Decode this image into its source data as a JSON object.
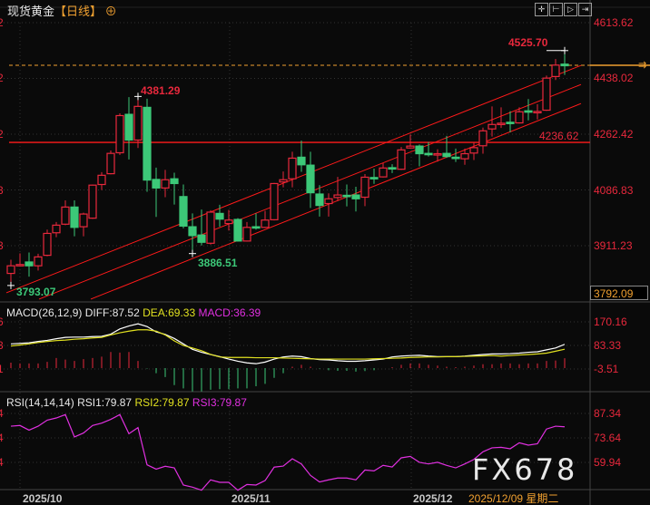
{
  "title": {
    "instrument": "现货黄金",
    "period": "【日线】",
    "icon": "plus-circle-icon"
  },
  "toolbar": [
    {
      "icon": "crosshair-icon"
    },
    {
      "icon": "zoom-range-icon"
    },
    {
      "icon": "play-forward-icon"
    },
    {
      "icon": "move-right-icon"
    }
  ],
  "colors": {
    "up": "#e8283c",
    "down": "#3cc878",
    "diff": "#ffffff",
    "dea": "#e0e020",
    "rsi": "#e030e0",
    "last_price": "#f0a030",
    "support": "#ff1a1a"
  },
  "price_axis": {
    "labels": [
      "4613.62",
      "4438.02",
      "4262.42",
      "4086.83",
      "3911.23"
    ],
    "values": [
      4613.62,
      4438.02,
      4262.42,
      4086.83,
      3911.23
    ],
    "bottom_box": "3792.09"
  },
  "left_axis_fragments": {
    "price": [
      "2",
      "2",
      "2",
      "3",
      "3"
    ],
    "macd": [
      "6",
      "3",
      "1"
    ],
    "rsi": [
      "4",
      "4",
      "4"
    ]
  },
  "annotations": {
    "high_label": "4525.70",
    "peak_label": "4381.29",
    "low_label": "3886.51",
    "start_low_label": "3793.07",
    "support_label": "4236.62"
  },
  "support_level": 4236.62,
  "last_price": 4479.4,
  "macd": {
    "label": "MACD(26,12,9)",
    "diff_label": "DIFF:87.52",
    "dea_label": "DEA:69.33",
    "macd_label": "MACD:36.39",
    "axis_labels": [
      "170.16",
      "83.33",
      "-3.51"
    ],
    "axis_values": [
      170.16,
      83.33,
      -3.51
    ]
  },
  "rsi": {
    "label": "RSI(14,14,14)",
    "rsi1_label": "RSI1:79.87",
    "rsi2_label": "RSI2:79.87",
    "rsi3_label": "RSI3:79.87",
    "axis_labels": [
      "87.34",
      "73.64",
      "59.94"
    ],
    "axis_values": [
      87.34,
      73.64,
      59.94
    ]
  },
  "x_axis": {
    "labels": [
      "2025/10",
      "2025/11",
      "2025/12"
    ],
    "cursor_date": "2025/12/09 星期二"
  },
  "watermark": "FX678",
  "chart_data": {
    "type": "candlestick",
    "ohlc": [
      [
        3824,
        3867,
        3786,
        3848
      ],
      [
        3850,
        3887,
        3846,
        3852
      ],
      [
        3860,
        3890,
        3814,
        3848
      ],
      [
        3848,
        3886,
        3833,
        3876
      ],
      [
        3881,
        3962,
        3878,
        3950
      ],
      [
        3952,
        3986,
        3938,
        3976
      ],
      [
        3979,
        4054,
        3976,
        4033
      ],
      [
        4033,
        4054,
        3941,
        3969
      ],
      [
        3971,
        4015,
        3941,
        4011
      ],
      [
        3998,
        4104,
        3996,
        4102
      ],
      [
        4104,
        4143,
        4087,
        4133
      ],
      [
        4138,
        4211,
        4136,
        4202
      ],
      [
        4204,
        4328,
        4197,
        4321
      ],
      [
        4325,
        4379,
        4183,
        4244
      ],
      [
        4244,
        4381.29,
        4219,
        4350
      ],
      [
        4347,
        4374,
        4081,
        4118
      ],
      [
        4120,
        4157,
        4002,
        4093
      ],
      [
        4093,
        4150,
        4064,
        4119
      ],
      [
        4122,
        4141,
        4041,
        4107
      ],
      [
        4066,
        4104,
        3966,
        3973
      ],
      [
        3971,
        4013,
        3886.51,
        3943
      ],
      [
        3945,
        4025,
        3912,
        3922
      ],
      [
        3919,
        4023,
        3915,
        4017
      ],
      [
        4013,
        4040,
        3971,
        3995
      ],
      [
        3981,
        4024,
        3959,
        3992
      ],
      [
        3994,
        3998,
        3924,
        3926
      ],
      [
        3926,
        3986,
        3924,
        3969
      ],
      [
        3971,
        4013,
        3962,
        3970
      ],
      [
        3969,
        4021,
        3967,
        3992
      ],
      [
        3993,
        4109,
        3991,
        4107
      ],
      [
        4112,
        4145,
        4095,
        4119
      ],
      [
        4122,
        4207,
        4095,
        4187
      ],
      [
        4190,
        4242,
        4144,
        4166
      ],
      [
        4165,
        4207,
        4030,
        4078
      ],
      [
        4074,
        4102,
        4003,
        4038
      ],
      [
        4044,
        4076,
        4003,
        4059
      ],
      [
        4063,
        4128,
        4052,
        4071
      ],
      [
        4070,
        4104,
        4035,
        4068
      ],
      [
        4071,
        4097,
        4019,
        4059
      ],
      [
        4064,
        4137,
        4036,
        4127
      ],
      [
        4126,
        4154,
        4106,
        4124
      ],
      [
        4128,
        4171,
        4126,
        4156
      ],
      [
        4157,
        4168,
        4140,
        4155
      ],
      [
        4152,
        4222,
        4150,
        4213
      ],
      [
        4219,
        4261,
        4217,
        4225
      ],
      [
        4225,
        4230,
        4161,
        4201
      ],
      [
        4202,
        4238,
        4192,
        4200
      ],
      [
        4200,
        4215,
        4176,
        4201
      ],
      [
        4202,
        4257,
        4188,
        4192
      ],
      [
        4190,
        4217,
        4175,
        4188
      ],
      [
        4185,
        4217,
        4166,
        4201
      ],
      [
        4203,
        4236,
        4181,
        4220
      ],
      [
        4226,
        4283,
        4201,
        4273
      ],
      [
        4279,
        4350,
        4255,
        4293
      ],
      [
        4296,
        4347,
        4282,
        4297
      ],
      [
        4300,
        4335,
        4268,
        4298
      ],
      [
        4298,
        4347,
        4296,
        4333
      ],
      [
        4336,
        4373,
        4306,
        4334
      ],
      [
        4333,
        4357,
        4309,
        4334
      ],
      [
        4338,
        4447,
        4336,
        4439
      ],
      [
        4444,
        4499,
        4433,
        4480
      ],
      [
        4483,
        4525.7,
        4449,
        4478
      ]
    ],
    "channel": {
      "upper": [
        [
          -0.5,
          3763
        ],
        [
          62.8,
          4479
        ]
      ],
      "middle": [
        [
          3.1,
          3743
        ],
        [
          62.8,
          4419
        ]
      ],
      "lower": [
        [
          8.8,
          3743
        ],
        [
          62.8,
          4359
        ]
      ]
    },
    "macd_hist": [
      20,
      17,
      17,
      17,
      23,
      37,
      31,
      26,
      33,
      37,
      42,
      59,
      57,
      59,
      26,
      -2,
      -19,
      -33,
      -63,
      -75,
      -86,
      -86,
      -80,
      -78,
      -78,
      -75,
      -75,
      -67,
      -58,
      -36,
      -19,
      5,
      12,
      5,
      -2,
      -8,
      -10,
      -10,
      -13,
      -11,
      -8,
      0,
      3,
      12,
      17,
      17,
      12,
      9,
      5,
      3,
      5,
      9,
      14,
      14,
      17,
      17,
      14,
      17,
      17,
      26,
      28,
      36
    ],
    "diff": [
      89,
      91,
      93,
      98,
      102,
      108,
      113,
      114,
      114,
      116,
      117,
      125,
      144,
      155,
      163,
      153,
      133,
      124,
      109,
      89,
      69,
      58,
      50,
      42,
      33,
      25,
      19,
      16,
      22,
      33,
      41,
      44,
      42,
      35,
      31,
      30,
      27,
      25,
      25,
      27,
      30,
      33,
      41,
      44,
      46,
      47,
      44,
      42,
      42,
      42,
      44,
      47,
      50,
      52,
      52,
      53,
      55,
      58,
      60,
      67,
      74,
      87.52
    ],
    "dea": [
      81,
      85,
      89,
      94,
      98,
      101,
      103,
      106,
      108,
      111,
      113,
      122,
      130,
      136,
      141,
      141,
      136,
      122,
      100,
      83,
      74,
      64,
      50,
      41,
      39,
      39,
      39,
      38,
      38,
      38,
      37,
      36,
      35,
      34,
      33,
      33,
      33,
      33,
      33,
      33,
      34,
      35,
      36,
      37,
      39,
      40,
      41,
      41,
      42,
      42,
      43,
      44,
      45,
      46,
      44,
      46,
      48,
      50,
      52,
      55,
      62,
      69.33
    ],
    "rsi": [
      80.2,
      80.6,
      78.0,
      80.2,
      83.6,
      84.8,
      86.7,
      74.2,
      76.4,
      80.6,
      81.9,
      84.0,
      86.7,
      76.0,
      79.4,
      58.6,
      56.2,
      57.8,
      56.9,
      47.3,
      46.1,
      44.4,
      50.2,
      48.8,
      48.8,
      44.4,
      47.6,
      47.3,
      49.8,
      57.3,
      57.9,
      62.0,
      59.1,
      52.7,
      49.0,
      50.2,
      51.2,
      51.2,
      50.2,
      55.7,
      55.2,
      58.3,
      57.4,
      62.5,
      63.3,
      60.0,
      59.1,
      60.0,
      58.3,
      56.9,
      59.1,
      61.6,
      65.9,
      68.1,
      68.4,
      67.6,
      70.9,
      69.6,
      70.4,
      78.6,
      80.2,
      79.87
    ]
  }
}
